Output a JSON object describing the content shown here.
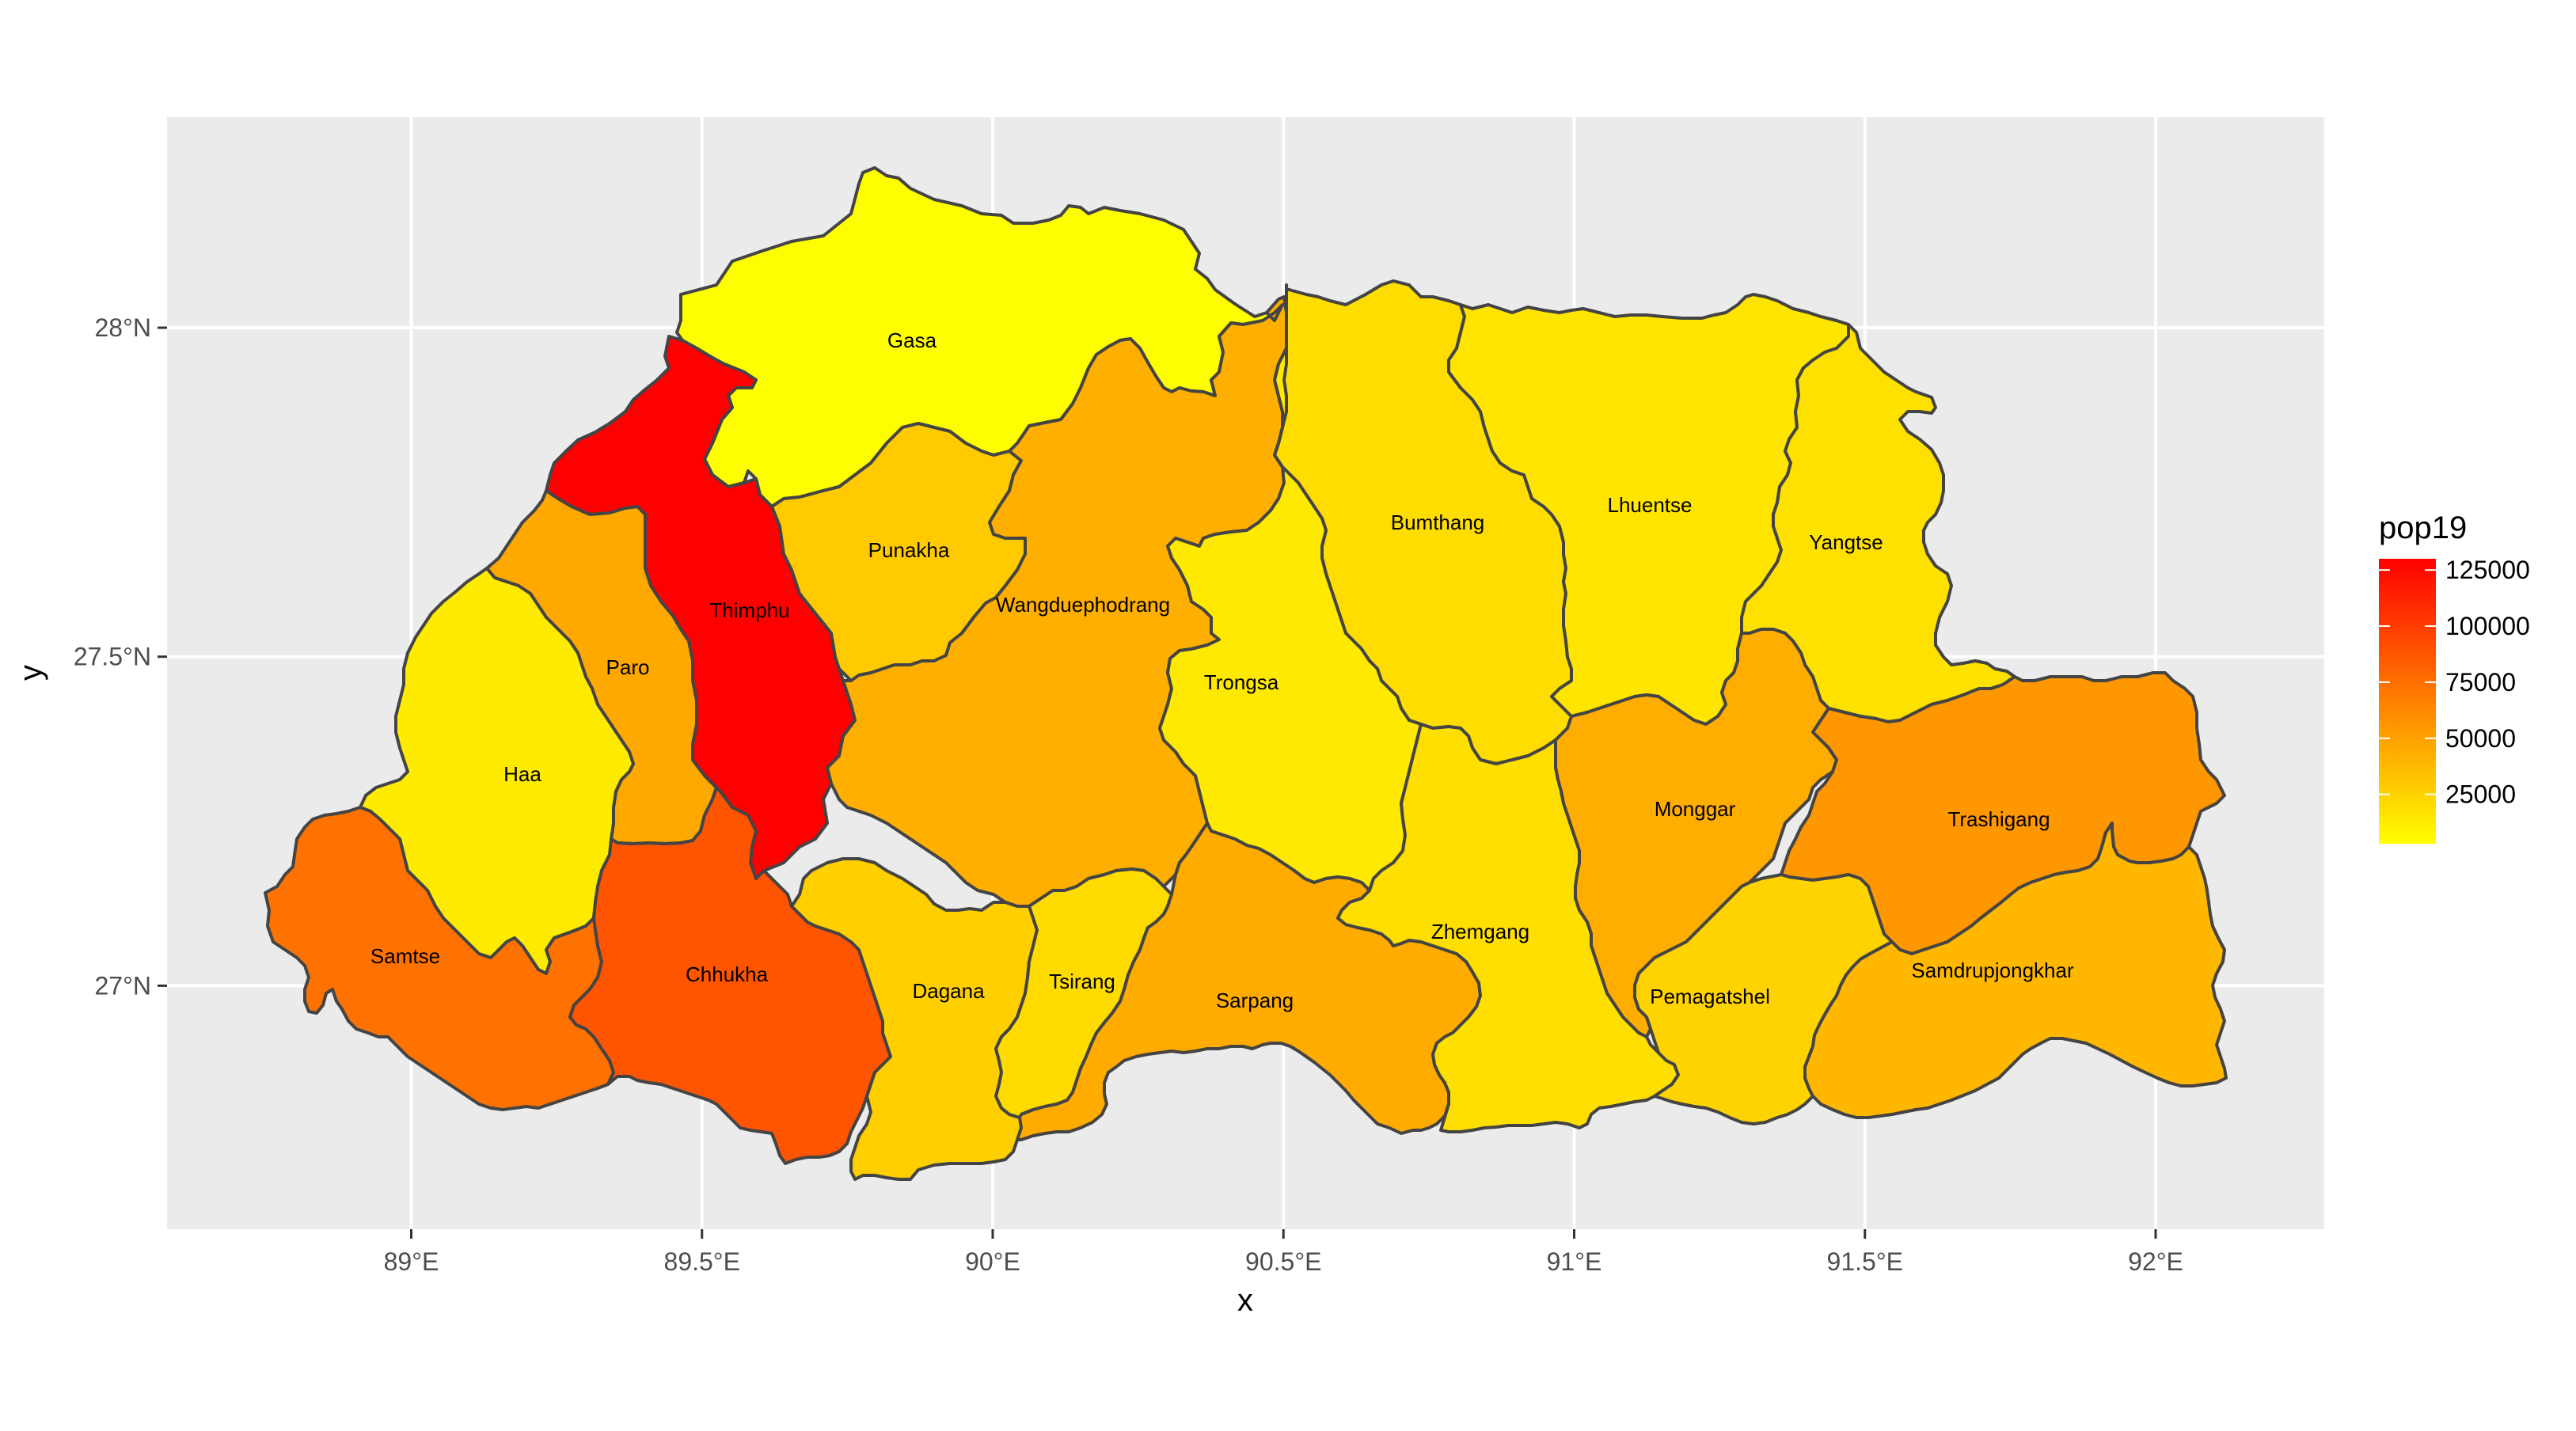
{
  "chart_data": {
    "type": "choropleth map",
    "xlabel": "x",
    "ylabel": "y",
    "x_ticks": [
      "89°E",
      "89.5°E",
      "90°E",
      "90.5°E",
      "91°E",
      "91.5°E",
      "92°E"
    ],
    "y_ticks": [
      "27°N",
      "27.5°N",
      "28°N"
    ],
    "xlim": [
      88.58,
      92.29
    ],
    "ylim": [
      26.63,
      28.32
    ],
    "legend": {
      "title": "pop19",
      "labels": [
        "125000",
        "100000",
        "75000",
        "50000",
        "25000"
      ],
      "min": 3000,
      "max": 130000,
      "low_color": "#ffff00",
      "high_color": "#ff0000",
      "placement": "right"
    },
    "regions": [
      {
        "name": "Gasa",
        "value": 3500
      },
      {
        "name": "Thimphu",
        "value": 130000
      },
      {
        "name": "Punakha",
        "value": 29000
      },
      {
        "name": "Wangduephodrang",
        "value": 43000
      },
      {
        "name": "Bumthang",
        "value": 20000
      },
      {
        "name": "Lhuentse",
        "value": 16000
      },
      {
        "name": "Yangtse",
        "value": 18000
      },
      {
        "name": "Paro",
        "value": 46000
      },
      {
        "name": "Haa",
        "value": 13000
      },
      {
        "name": "Trongsa",
        "value": 14000
      },
      {
        "name": "Monggar",
        "value": 44000
      },
      {
        "name": "Trashigang",
        "value": 55000
      },
      {
        "name": "Samtse",
        "value": 73000
      },
      {
        "name": "Chhukha",
        "value": 88000
      },
      {
        "name": "Dagana",
        "value": 27000
      },
      {
        "name": "Tsirang",
        "value": 21000
      },
      {
        "name": "Sarpang",
        "value": 45000
      },
      {
        "name": "Zhemgang",
        "value": 19000
      },
      {
        "name": "Pemagatshel",
        "value": 25000
      },
      {
        "name": "Samdrupjongkhar",
        "value": 39000
      }
    ]
  }
}
